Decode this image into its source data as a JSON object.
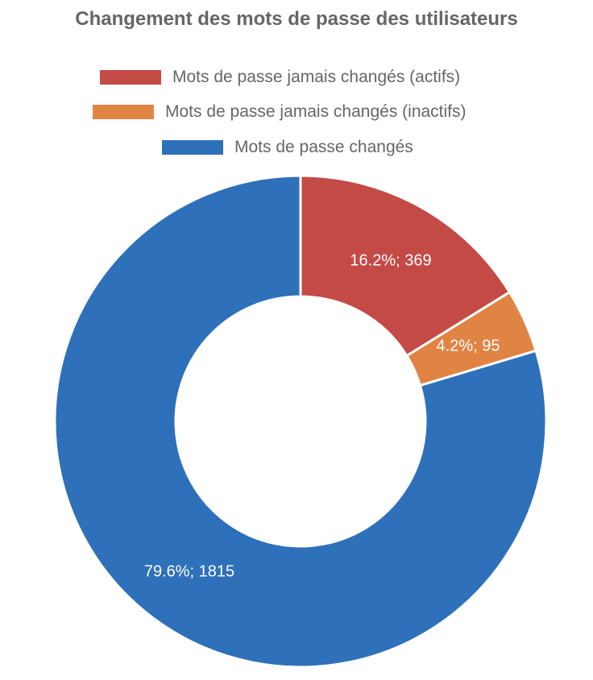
{
  "chart_data": {
    "type": "pie",
    "donut": true,
    "title": "Changement des mots de passe des utilisateurs",
    "legend_position": "top",
    "series": [
      {
        "name": "Mots de passe jamais changés (actifs)",
        "value": 369,
        "percent": 16.2,
        "label": "16.2%; 369",
        "color": "#c44a46"
      },
      {
        "name": "Mots de passe jamais changés (inactifs)",
        "value": 95,
        "percent": 4.2,
        "label": "4.2%; 95",
        "color": "#e08444"
      },
      {
        "name": "Mots de passe changés",
        "value": 1815,
        "percent": 79.6,
        "label": "79.6%; 1815",
        "color": "#2e70b9"
      }
    ]
  }
}
